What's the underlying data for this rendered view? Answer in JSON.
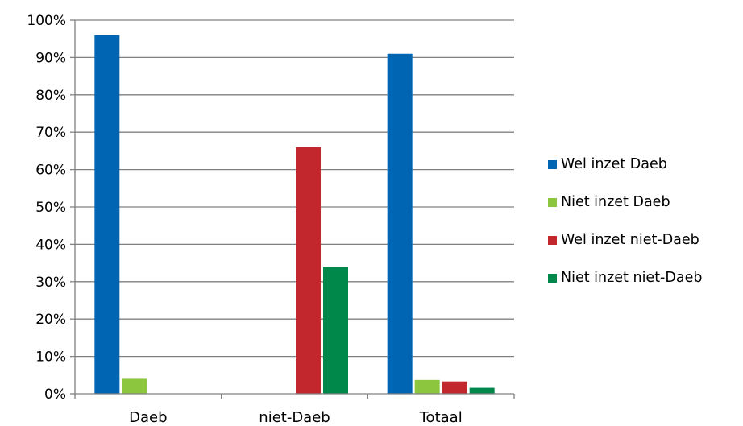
{
  "chart_data": {
    "type": "bar",
    "categories": [
      "Daeb",
      "niet-Daeb",
      "Totaal"
    ],
    "y_ticks": [
      "0%",
      "10%",
      "20%",
      "30%",
      "40%",
      "50%",
      "60%",
      "70%",
      "80%",
      "90%",
      "100%"
    ],
    "ylim": [
      0,
      100
    ],
    "grid": true,
    "legend_position": "right",
    "series": [
      {
        "name": "Wel inzet Daeb",
        "color": "#0066b3",
        "values": [
          96,
          0,
          91
        ]
      },
      {
        "name": "Niet inzet Daeb",
        "color": "#8cc63f",
        "values": [
          4,
          0,
          3.7
        ]
      },
      {
        "name": "Wel inzet niet-Daeb",
        "color": "#c1272d",
        "values": [
          0,
          66,
          3.3
        ]
      },
      {
        "name": "Niet inzet niet-Daeb",
        "color": "#00884a",
        "values": [
          0,
          34,
          1.6
        ]
      }
    ]
  }
}
